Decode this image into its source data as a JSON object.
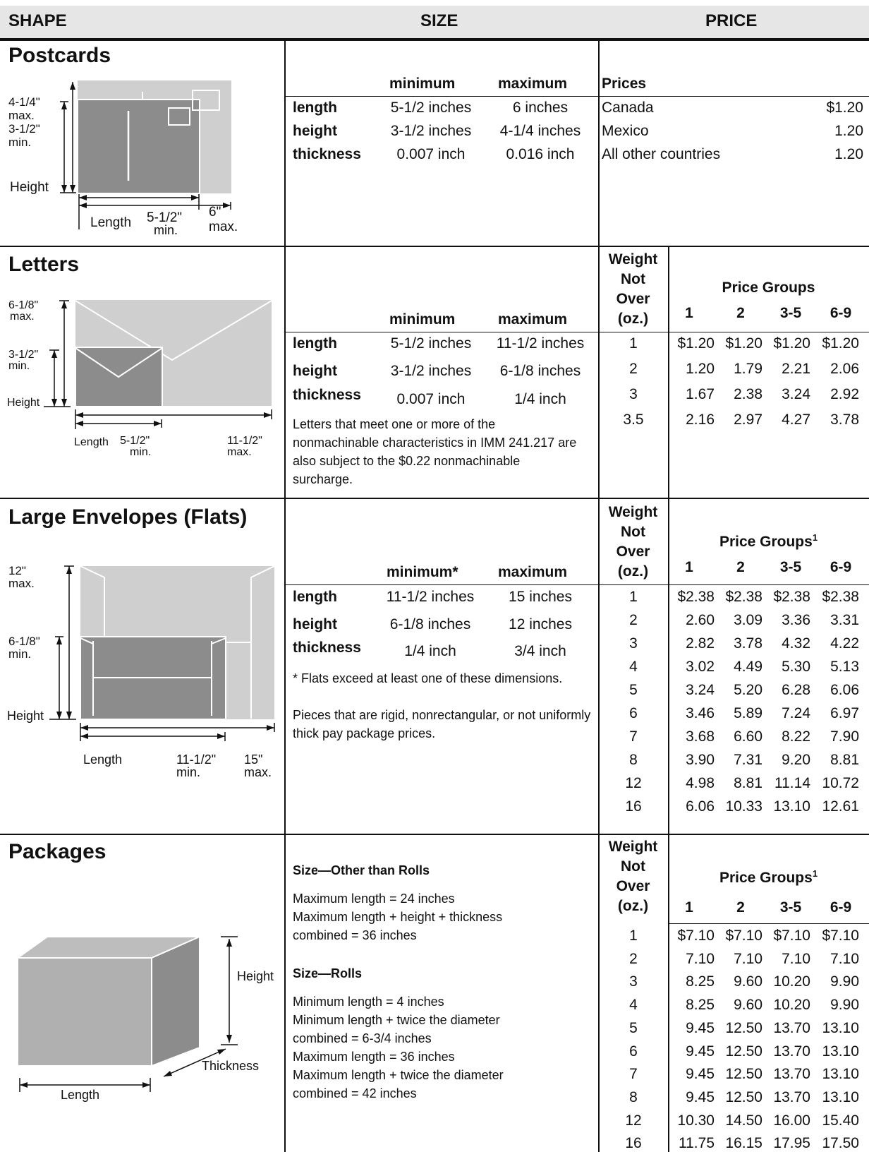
{
  "header": {
    "shape": "SHAPE",
    "size": "SIZE",
    "price": "PRICE"
  },
  "dims": {
    "minimum": "minimum",
    "maximum": "maximum",
    "minimum_star": "minimum*",
    "length": "length",
    "height": "height",
    "thickness": "thickness"
  },
  "postcards": {
    "title": "Postcards",
    "diagram": {
      "h_max": "4-1/4\"",
      "h_max2": "max.",
      "h_min": "3-1/2\"",
      "h_min2": "min.",
      "height": "Height",
      "length": "Length",
      "l_min": "5-1/2\"",
      "l_min2": "min.",
      "l_max": "6\"",
      "l_max2": "max."
    },
    "rows": [
      {
        "label": "length",
        "min": "5-1/2 inches",
        "max": "6 inches"
      },
      {
        "label": "height",
        "min": "3-1/2 inches",
        "max": "4-1/4 inches"
      },
      {
        "label": "thickness",
        "min": "0.007 inch",
        "max": "0.016 inch"
      }
    ],
    "prices_label": "Prices",
    "prices": [
      {
        "dest": "Canada",
        "price": "$1.20"
      },
      {
        "dest": "Mexico",
        "price": "1.20"
      },
      {
        "dest": "All other countries",
        "price": "1.20"
      }
    ]
  },
  "wt_header": {
    "l1": "Weight",
    "l2": "Not",
    "l3": "Over",
    "l4": "(oz.)"
  },
  "groups": {
    "label": "Price Groups",
    "sup": "1",
    "g1": "1",
    "g2": "2",
    "g3": "3-5",
    "g4": "6-9"
  },
  "letters": {
    "title": "Letters",
    "diagram": {
      "h_max": "6-1/8\"",
      "h_max2": "max.",
      "h_min": "3-1/2\"",
      "h_min2": "min.",
      "height": "Height",
      "length": "Length",
      "l_min": "5-1/2\"",
      "l_min2": "min.",
      "l_max": "11-1/2\"",
      "l_max2": "max."
    },
    "rows": [
      {
        "label": "length",
        "min": "5-1/2 inches",
        "max": "11-1/2 inches"
      },
      {
        "label": "height",
        "min": "3-1/2 inches",
        "max": "6-1/8 inches"
      },
      {
        "label": "thickness",
        "min": "0.007 inch",
        "max": "1/4 inch"
      }
    ],
    "note": "Letters that meet one or more of the nonmachinable characteristics in IMM 241.217 are also subject to the $0.22 nonmachinable surcharge.",
    "prices": [
      [
        "1",
        "$1.20",
        "$1.20",
        "$1.20",
        "$1.20"
      ],
      [
        "2",
        "1.20",
        "1.79",
        "2.21",
        "2.06"
      ],
      [
        "3",
        "1.67",
        "2.38",
        "3.24",
        "2.92"
      ],
      [
        "3.5",
        "2.16",
        "2.97",
        "4.27",
        "3.78"
      ]
    ]
  },
  "flats": {
    "title": "Large Envelopes (Flats)",
    "diagram": {
      "h_max": "12\"",
      "h_max2": "max.",
      "h_min": "6-1/8\"",
      "h_min2": "min.",
      "height": "Height",
      "length": "Length",
      "l_min": "11-1/2\"",
      "l_min2": "min.",
      "l_max": "15\"",
      "l_max2": "max."
    },
    "rows": [
      {
        "label": "length",
        "min": "11-1/2 inches",
        "max": "15 inches"
      },
      {
        "label": "height",
        "min": "6-1/8 inches",
        "max": "12 inches"
      },
      {
        "label": "thickness",
        "min": "1/4 inch",
        "max": "3/4 inch"
      }
    ],
    "note1": "* Flats exceed at least one of these dimensions.",
    "note2": "Pieces that are rigid, nonrectangular, or not uniformly thick pay package prices.",
    "prices": [
      [
        "1",
        "$2.38",
        "$2.38",
        "$2.38",
        "$2.38"
      ],
      [
        "2",
        "2.60",
        "3.09",
        "3.36",
        "3.31"
      ],
      [
        "3",
        "2.82",
        "3.78",
        "4.32",
        "4.22"
      ],
      [
        "4",
        "3.02",
        "4.49",
        "5.30",
        "5.13"
      ],
      [
        "5",
        "3.24",
        "5.20",
        "6.28",
        "6.06"
      ],
      [
        "6",
        "3.46",
        "5.89",
        "7.24",
        "6.97"
      ],
      [
        "7",
        "3.68",
        "6.60",
        "8.22",
        "7.90"
      ],
      [
        "8",
        "3.90",
        "7.31",
        "9.20",
        "8.81"
      ],
      [
        "12",
        "4.98",
        "8.81",
        "11.14",
        "10.72"
      ],
      [
        "16",
        "6.06",
        "10.33",
        "13.10",
        "12.61"
      ]
    ]
  },
  "packages": {
    "title": "Packages",
    "diagram": {
      "height": "Height",
      "thickness": "Thickness",
      "length": "Length"
    },
    "size_other_title": "Size—Other than Rolls",
    "size_other": [
      "Maximum length = 24 inches",
      "Maximum length + height + thickness",
      "combined = 36 inches"
    ],
    "size_rolls_title": "Size—Rolls",
    "size_rolls": [
      "Minimum length = 4 inches",
      "Minimum length + twice the diameter",
      "combined = 6-3/4 inches",
      "Maximum length = 36 inches",
      "Maximum length + twice the diameter",
      "combined = 42 inches"
    ],
    "prices": [
      [
        "1",
        "$7.10",
        "$7.10",
        "$7.10",
        "$7.10"
      ],
      [
        "2",
        "7.10",
        "7.10",
        "7.10",
        "7.10"
      ],
      [
        "3",
        "8.25",
        "9.60",
        "10.20",
        "9.90"
      ],
      [
        "4",
        "8.25",
        "9.60",
        "10.20",
        "9.90"
      ],
      [
        "5",
        "9.45",
        "12.50",
        "13.70",
        "13.10"
      ],
      [
        "6",
        "9.45",
        "12.50",
        "13.70",
        "13.10"
      ],
      [
        "7",
        "9.45",
        "12.50",
        "13.70",
        "13.10"
      ],
      [
        "8",
        "9.45",
        "12.50",
        "13.70",
        "13.10"
      ],
      [
        "12",
        "10.30",
        "14.50",
        "16.00",
        "15.40"
      ],
      [
        "16",
        "11.75",
        "16.15",
        "17.95",
        "17.50"
      ]
    ]
  }
}
